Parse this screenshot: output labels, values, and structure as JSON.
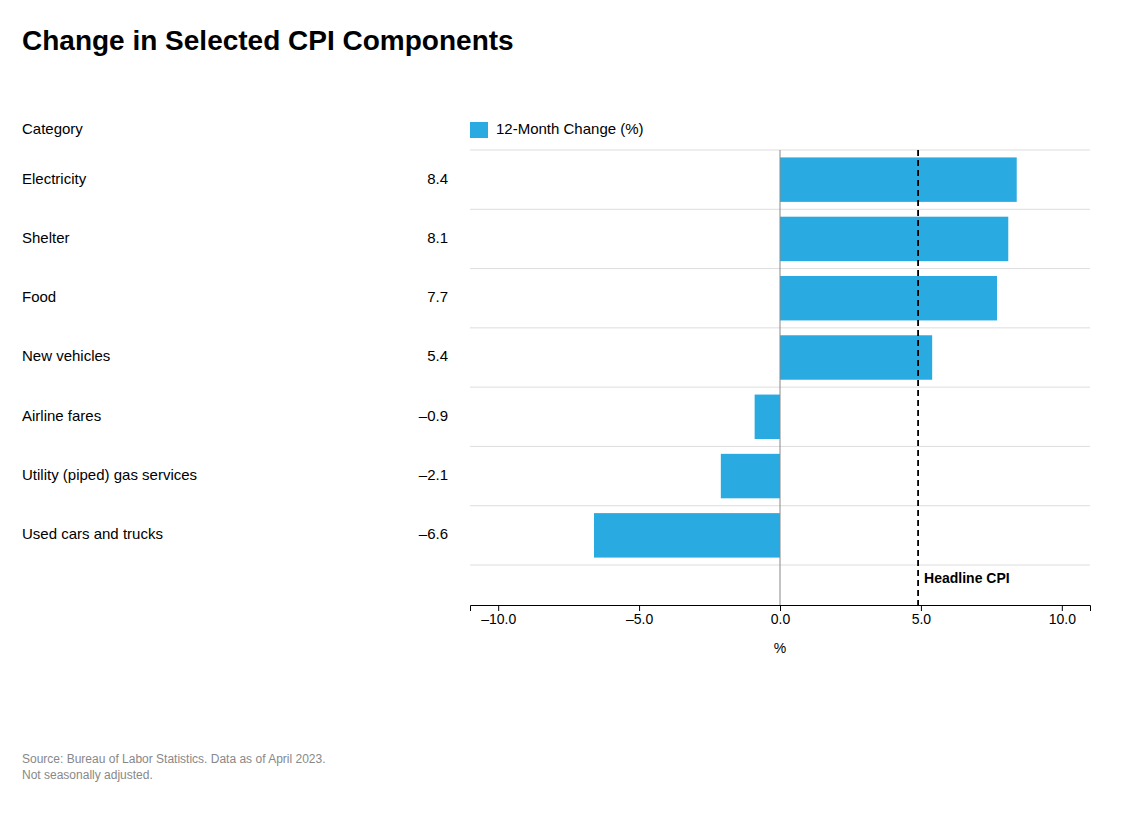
{
  "chart_data": {
    "type": "bar",
    "orientation": "horizontal",
    "title": "Change in Selected CPI Components",
    "ylabel": "Category",
    "xlabel": "%",
    "categories": [
      "Electricity",
      "Shelter",
      "Food",
      "New vehicles",
      "Airline fares",
      "Utility (piped) gas services",
      "Used cars and trucks"
    ],
    "series": [
      {
        "name": "12-Month Change (%)",
        "color": "#29abe2",
        "values": [
          8.4,
          8.1,
          7.7,
          5.4,
          -0.9,
          -2.1,
          -6.6
        ],
        "value_labels": [
          "8.4",
          "8.1",
          "7.7",
          "5.4",
          "–0.9",
          "–2.1",
          "–6.6"
        ]
      }
    ],
    "data_labels": true,
    "legend": "top",
    "xlim": [
      -11.0,
      11.0
    ],
    "xticks": [
      {
        "value": -10.0,
        "label": "–10.0"
      },
      {
        "value": -5.0,
        "label": "–5.0"
      },
      {
        "value": 0.0,
        "label": "0.0"
      },
      {
        "value": 5.0,
        "label": "5.0"
      },
      {
        "value": 10.0,
        "label": "10.0"
      }
    ],
    "reference_lines": [
      {
        "value": 4.9,
        "label": "Headline CPI"
      }
    ],
    "source": "Source: Bureau of Labor Statistics. Data as of April 2023.\nNot seasonally adjusted."
  }
}
